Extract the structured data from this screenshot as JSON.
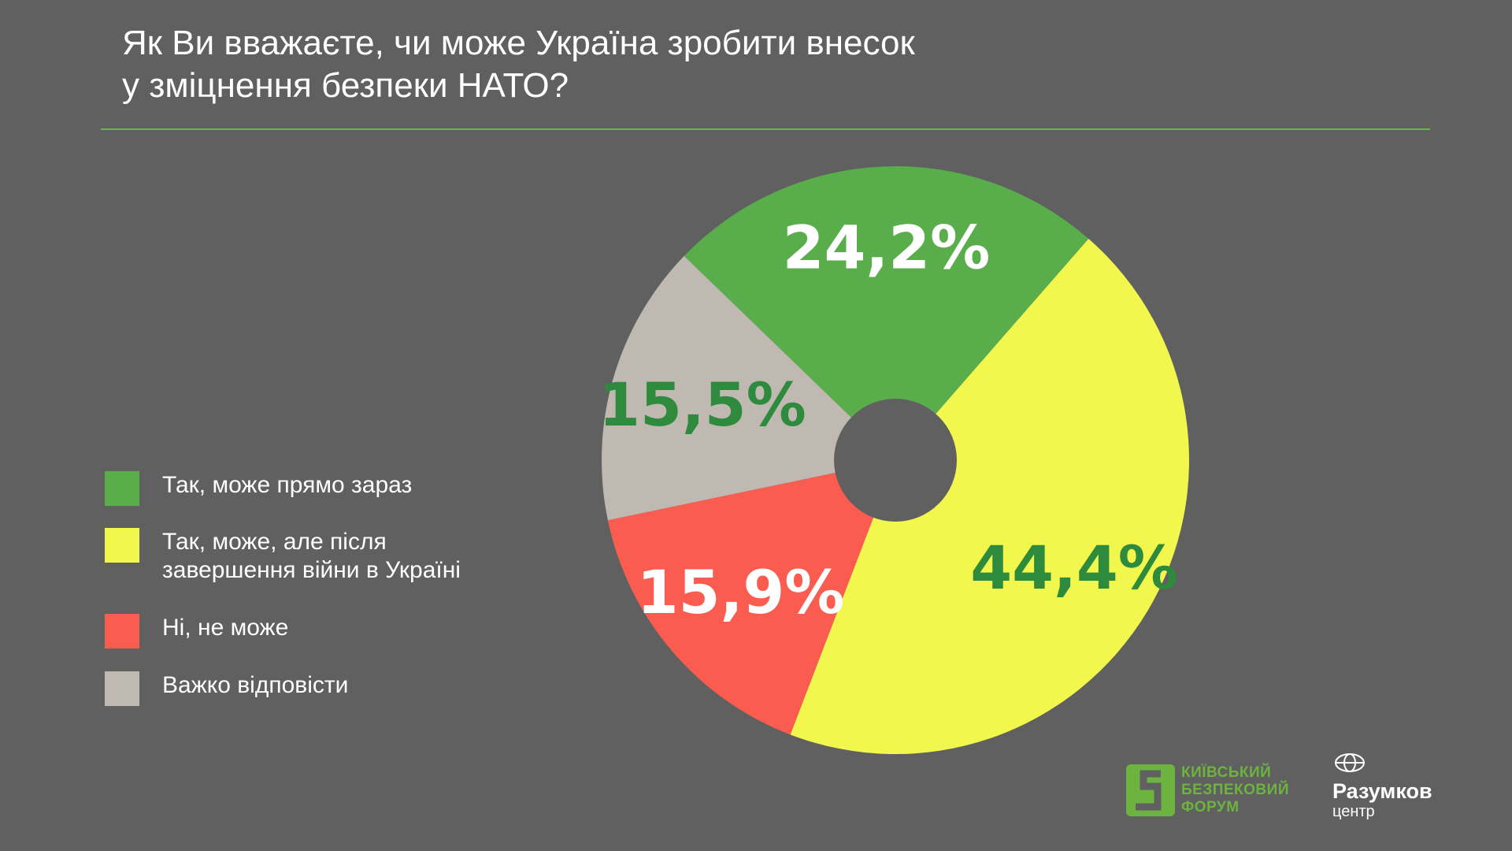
{
  "title": {
    "line1": "Як Ви вважаєте, чи може Україна зробити внесок",
    "line2": "у зміцнення безпеки НАТО?"
  },
  "chart_data": {
    "type": "pie",
    "title": "Як Ви вважаєте, чи може Україна зробити внесок у зміцнення безпеки НАТО?",
    "categories": [
      "Так, може прямо зараз",
      "Так, може, але після завершення війни в Україні",
      "Ні, не може",
      "Важко відповісти"
    ],
    "values": [
      24.2,
      44.4,
      15.9,
      15.5
    ],
    "data_labels": [
      "24,2%",
      "44,4%",
      "15,9%",
      "15,5%"
    ],
    "colors": [
      "#5aad4b",
      "#f2f74d",
      "#fa5c4f",
      "#bfb9b1"
    ],
    "label_colors": [
      "#ffffff",
      "#2e8b3d",
      "#ffffff",
      "#2e8b3d"
    ],
    "start_angle_deg": -46,
    "donut_hole": true,
    "legend_position": "left"
  },
  "legend": {
    "items": [
      {
        "lines": [
          "Так, може прямо зараз"
        ],
        "color": "#5aad4b"
      },
      {
        "lines": [
          "Так, може, але після",
          "завершення війни в Україні"
        ],
        "color": "#f2f74d"
      },
      {
        "lines": [
          "Ні, не може"
        ],
        "color": "#fa5c4f"
      },
      {
        "lines": [
          "Важко відповісти"
        ],
        "color": "#bfb9b1"
      }
    ]
  },
  "logos": {
    "kbf": {
      "line1": "КИЇВСЬКИЙ",
      "line2": "БЕЗПЕКОВИЙ",
      "line3": "ФОРУМ",
      "color": "#6cb33f"
    },
    "razumkov": {
      "name": "Разумков",
      "sub": "центр"
    }
  },
  "colors": {
    "background": "#606060",
    "accent": "#6cb33f"
  }
}
